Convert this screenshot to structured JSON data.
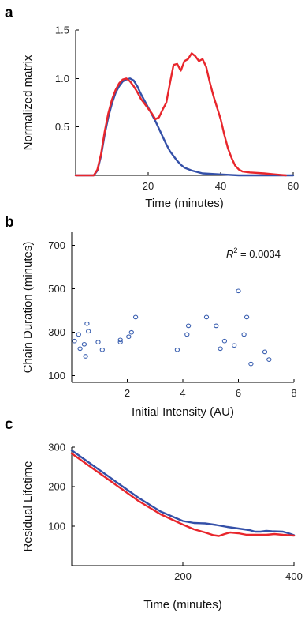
{
  "panels": {
    "a": "a",
    "b": "b",
    "c": "c"
  },
  "annotation": {
    "prefix": "R",
    "sup": "2",
    "rest": " = 0.0034"
  },
  "colors": {
    "red": "#e8262c",
    "blue": "#3450a8",
    "scatter": "#3a5fb0"
  },
  "chart_data": [
    {
      "type": "line",
      "panel": "a",
      "title": "",
      "xlabel": "Time (minutes)",
      "ylabel": "Normalized matrix",
      "xlim": [
        0,
        60
      ],
      "ylim": [
        0,
        1.5
      ],
      "xticks": [
        20,
        40,
        60
      ],
      "yticks": [
        0.5,
        1.0,
        1.5
      ],
      "xtick_labels": [
        "20",
        "40",
        "60"
      ],
      "ytick_labels": [
        "0.5",
        "1.0",
        "1.5"
      ],
      "series": [
        {
          "color": "#3450a8",
          "points": [
            [
              0,
              0
            ],
            [
              5,
              0
            ],
            [
              6,
              0.05
            ],
            [
              7,
              0.2
            ],
            [
              8,
              0.42
            ],
            [
              9,
              0.6
            ],
            [
              10,
              0.74
            ],
            [
              11,
              0.85
            ],
            [
              12,
              0.92
            ],
            [
              13,
              0.97
            ],
            [
              14,
              0.99
            ],
            [
              15,
              1.0
            ],
            [
              16,
              0.98
            ],
            [
              17,
              0.92
            ],
            [
              18,
              0.84
            ],
            [
              19,
              0.77
            ],
            [
              20,
              0.7
            ],
            [
              21,
              0.63
            ],
            [
              22,
              0.56
            ],
            [
              23,
              0.48
            ],
            [
              24,
              0.4
            ],
            [
              25,
              0.32
            ],
            [
              26,
              0.25
            ],
            [
              27,
              0.2
            ],
            [
              28,
              0.15
            ],
            [
              29,
              0.11
            ],
            [
              30,
              0.08
            ],
            [
              32,
              0.05
            ],
            [
              35,
              0.02
            ],
            [
              40,
              0.01
            ],
            [
              45,
              0
            ],
            [
              60,
              0
            ]
          ]
        },
        {
          "color": "#e8262c",
          "points": [
            [
              0,
              0
            ],
            [
              5,
              0
            ],
            [
              6,
              0.06
            ],
            [
              7,
              0.22
            ],
            [
              8,
              0.45
            ],
            [
              9,
              0.64
            ],
            [
              10,
              0.78
            ],
            [
              11,
              0.88
            ],
            [
              12,
              0.95
            ],
            [
              13,
              0.99
            ],
            [
              14,
              1.0
            ],
            [
              15,
              0.97
            ],
            [
              16,
              0.92
            ],
            [
              17,
              0.86
            ],
            [
              18,
              0.79
            ],
            [
              19,
              0.74
            ],
            [
              20,
              0.69
            ],
            [
              21,
              0.64
            ],
            [
              22,
              0.58
            ],
            [
              23,
              0.6
            ],
            [
              24,
              0.68
            ],
            [
              25,
              0.75
            ],
            [
              26,
              0.95
            ],
            [
              27,
              1.14
            ],
            [
              28,
              1.15
            ],
            [
              29,
              1.08
            ],
            [
              30,
              1.18
            ],
            [
              31,
              1.2
            ],
            [
              32,
              1.26
            ],
            [
              33,
              1.23
            ],
            [
              34,
              1.18
            ],
            [
              35,
              1.2
            ],
            [
              36,
              1.12
            ],
            [
              37,
              0.96
            ],
            [
              38,
              0.82
            ],
            [
              39,
              0.7
            ],
            [
              40,
              0.58
            ],
            [
              41,
              0.42
            ],
            [
              42,
              0.28
            ],
            [
              43,
              0.18
            ],
            [
              44,
              0.1
            ],
            [
              45,
              0.06
            ],
            [
              46,
              0.04
            ],
            [
              48,
              0.03
            ],
            [
              52,
              0.02
            ],
            [
              55,
              0.01
            ],
            [
              58,
              0
            ]
          ]
        }
      ]
    },
    {
      "type": "scatter",
      "panel": "b",
      "title": "",
      "xlabel": "Initial Intensity (AU)",
      "ylabel": "Chain Duration (minutes)",
      "xlim": [
        0,
        8
      ],
      "ylim": [
        70,
        760
      ],
      "xticks": [
        2,
        4,
        6,
        8
      ],
      "yticks": [
        100,
        300,
        500,
        700
      ],
      "xtick_labels": [
        "2",
        "4",
        "6",
        "8"
      ],
      "ytick_labels": [
        "100",
        "300",
        "500",
        "700"
      ],
      "points": [
        [
          0.1,
          260
        ],
        [
          0.25,
          290
        ],
        [
          0.3,
          225
        ],
        [
          0.45,
          245
        ],
        [
          0.5,
          190
        ],
        [
          0.55,
          340
        ],
        [
          0.6,
          305
        ],
        [
          0.95,
          255
        ],
        [
          1.1,
          220
        ],
        [
          1.75,
          255
        ],
        [
          1.75,
          265
        ],
        [
          2.05,
          280
        ],
        [
          2.15,
          300
        ],
        [
          2.3,
          370
        ],
        [
          3.8,
          220
        ],
        [
          4.15,
          290
        ],
        [
          4.2,
          330
        ],
        [
          4.85,
          370
        ],
        [
          5.2,
          330
        ],
        [
          5.35,
          225
        ],
        [
          5.5,
          260
        ],
        [
          5.85,
          240
        ],
        [
          6.0,
          490
        ],
        [
          6.2,
          290
        ],
        [
          6.3,
          370
        ],
        [
          6.45,
          155
        ],
        [
          6.95,
          210
        ],
        [
          7.1,
          175
        ]
      ]
    },
    {
      "type": "line",
      "panel": "c",
      "title": "",
      "xlabel": "Time (minutes)",
      "ylabel": "Residual Lifetime",
      "xlim": [
        0,
        400
      ],
      "ylim": [
        0,
        300
      ],
      "xticks": [
        200,
        400
      ],
      "yticks": [
        100,
        200,
        300
      ],
      "xtick_labels": [
        "200",
        "400"
      ],
      "ytick_labels": [
        "100",
        "200",
        "300"
      ],
      "series": [
        {
          "color": "#3450a8",
          "points": [
            [
              0,
              292
            ],
            [
              40,
              252
            ],
            [
              80,
              212
            ],
            [
              120,
              172
            ],
            [
              160,
              137
            ],
            [
              180,
              125
            ],
            [
              200,
              113
            ],
            [
              220,
              108
            ],
            [
              240,
              107
            ],
            [
              260,
              103
            ],
            [
              280,
              98
            ],
            [
              300,
              94
            ],
            [
              320,
              90
            ],
            [
              330,
              86
            ],
            [
              340,
              86
            ],
            [
              350,
              88
            ],
            [
              360,
              87
            ],
            [
              380,
              86
            ],
            [
              390,
              82
            ],
            [
              400,
              77
            ]
          ]
        },
        {
          "color": "#e8262c",
          "points": [
            [
              0,
              284
            ],
            [
              40,
              244
            ],
            [
              80,
              204
            ],
            [
              120,
              164
            ],
            [
              160,
              130
            ],
            [
              180,
              117
            ],
            [
              200,
              104
            ],
            [
              220,
              92
            ],
            [
              240,
              84
            ],
            [
              255,
              77
            ],
            [
              265,
              75
            ],
            [
              275,
              80
            ],
            [
              285,
              84
            ],
            [
              300,
              82
            ],
            [
              315,
              78
            ],
            [
              330,
              78
            ],
            [
              350,
              78
            ],
            [
              365,
              80
            ],
            [
              380,
              78
            ],
            [
              400,
              76
            ]
          ]
        }
      ]
    }
  ]
}
